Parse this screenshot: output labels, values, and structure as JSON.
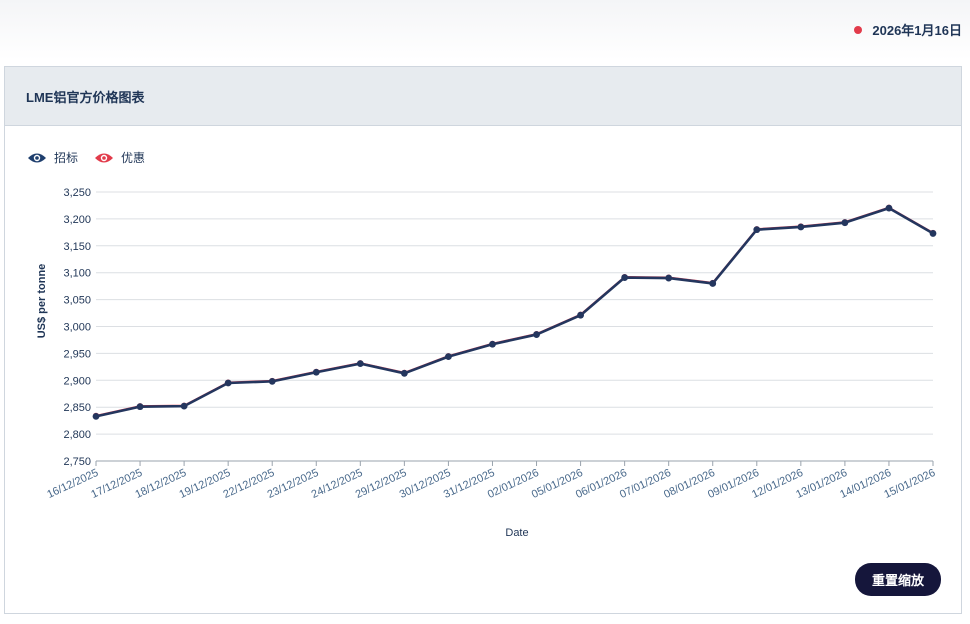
{
  "header": {
    "date": "2026年1月16日",
    "dot_color": "#e23b4b"
  },
  "panel": {
    "title": "LME铝官方价格图表"
  },
  "legend": [
    {
      "label": "招标",
      "icon": "eye-icon",
      "color": "#1f3f6e"
    },
    {
      "label": "优惠",
      "icon": "eye-icon",
      "color": "#e23b4b"
    }
  ],
  "reset_button": {
    "label": "重置缩放"
  },
  "chart_data": {
    "type": "line",
    "xlabel": "Date",
    "ylabel": "US$ per tonne",
    "ylim": [
      2750,
      3250
    ],
    "yticks": [
      2750,
      2800,
      2850,
      2900,
      2950,
      3000,
      3050,
      3100,
      3150,
      3200,
      3250
    ],
    "yticklabels": [
      "2,750",
      "2,800",
      "2,850",
      "2,900",
      "2,950",
      "3,000",
      "3,050",
      "3,100",
      "3,150",
      "3,200",
      "3,250"
    ],
    "grid": true,
    "categories": [
      "16/12/2025",
      "17/12/2025",
      "18/12/2025",
      "19/12/2025",
      "22/12/2025",
      "23/12/2025",
      "24/12/2025",
      "29/12/2025",
      "30/12/2025",
      "31/12/2025",
      "02/01/2026",
      "05/01/2026",
      "06/01/2026",
      "07/01/2026",
      "08/01/2026",
      "09/01/2026",
      "12/01/2026",
      "13/01/2026",
      "14/01/2026",
      "15/01/2026"
    ],
    "series": [
      {
        "name": "招标",
        "color": "#24365e",
        "values": [
          2833,
          2851,
          2852,
          2895,
          2898,
          2915,
          2931,
          2913,
          2944,
          2967,
          2985,
          3021,
          3091,
          3090,
          3080,
          3180,
          3185,
          3193,
          3220,
          3173
        ]
      },
      {
        "name": "优惠",
        "color": "#e23b4b",
        "values": [
          2834,
          2852,
          2853,
          2896,
          2899,
          2916,
          2932,
          2914,
          2945,
          2968,
          2986,
          3022,
          3092,
          3091,
          3081,
          3181,
          3186,
          3194,
          3221,
          3174
        ]
      }
    ]
  }
}
